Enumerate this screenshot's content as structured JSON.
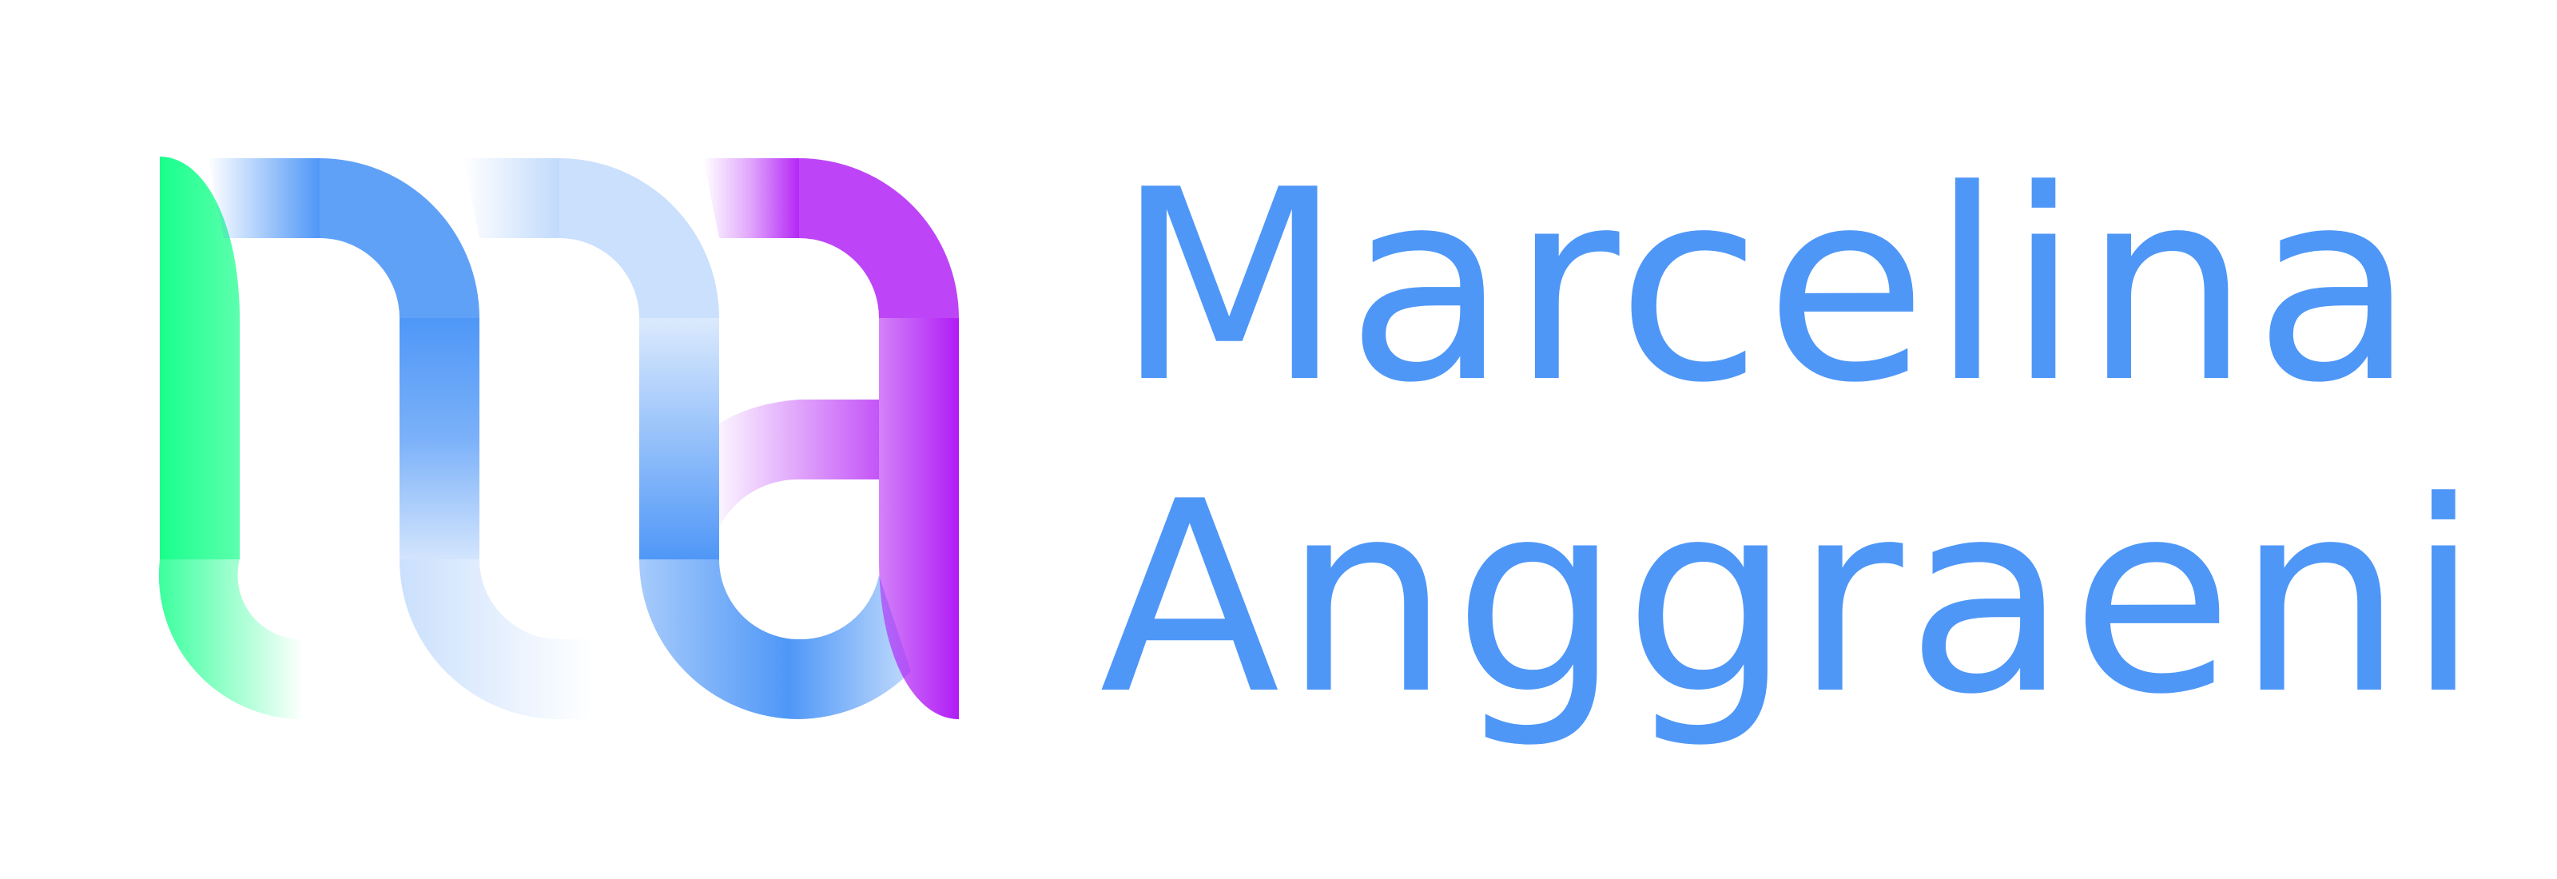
{
  "brand": {
    "first_name": "Marcelina",
    "last_name": "Anggraeni",
    "monogram": "ma",
    "text_color": "#4f97f7",
    "monogram_colors": {
      "green": "#19ff8c",
      "blue": "#4f97f7",
      "violet": "#b01cf5",
      "fade": "#ffffff"
    },
    "monogram_icon": "ma-ribbon-monogram-icon"
  }
}
